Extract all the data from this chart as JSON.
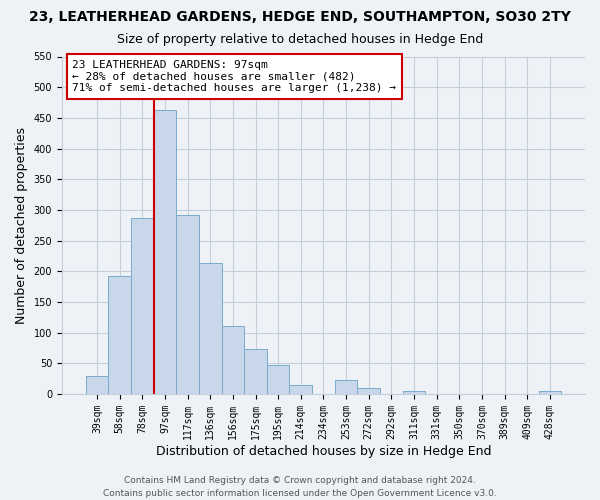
{
  "title": "23, LEATHERHEAD GARDENS, HEDGE END, SOUTHAMPTON, SO30 2TY",
  "subtitle": "Size of property relative to detached houses in Hedge End",
  "xlabel": "Distribution of detached houses by size in Hedge End",
  "ylabel": "Number of detached properties",
  "bar_labels": [
    "39sqm",
    "58sqm",
    "78sqm",
    "97sqm",
    "117sqm",
    "136sqm",
    "156sqm",
    "175sqm",
    "195sqm",
    "214sqm",
    "234sqm",
    "253sqm",
    "272sqm",
    "292sqm",
    "311sqm",
    "331sqm",
    "350sqm",
    "370sqm",
    "389sqm",
    "409sqm",
    "428sqm"
  ],
  "bar_values": [
    30,
    192,
    287,
    462,
    291,
    213,
    110,
    74,
    47,
    14,
    0,
    22,
    9,
    0,
    5,
    0,
    0,
    0,
    0,
    0,
    5
  ],
  "bar_color": "#c8d8ea",
  "bar_edge_color": "#7aaacb",
  "highlight_line_index": 3,
  "highlight_line_color": "#cc0000",
  "annotation_line1": "23 LEATHERHEAD GARDENS: 97sqm",
  "annotation_line2": "← 28% of detached houses are smaller (482)",
  "annotation_line3": "71% of semi-detached houses are larger (1,238) →",
  "annotation_box_color": "white",
  "annotation_box_edge_color": "#cc0000",
  "ylim": [
    0,
    550
  ],
  "yticks": [
    0,
    50,
    100,
    150,
    200,
    250,
    300,
    350,
    400,
    450,
    500,
    550
  ],
  "footer_line1": "Contains HM Land Registry data © Crown copyright and database right 2024.",
  "footer_line2": "Contains public sector information licensed under the Open Government Licence v3.0.",
  "background_color": "#eef2f7",
  "grid_color": "#c5cfda",
  "title_fontsize": 10,
  "subtitle_fontsize": 9,
  "axis_label_fontsize": 9,
  "tick_fontsize": 7,
  "annotation_fontsize": 8,
  "footer_fontsize": 6.5
}
